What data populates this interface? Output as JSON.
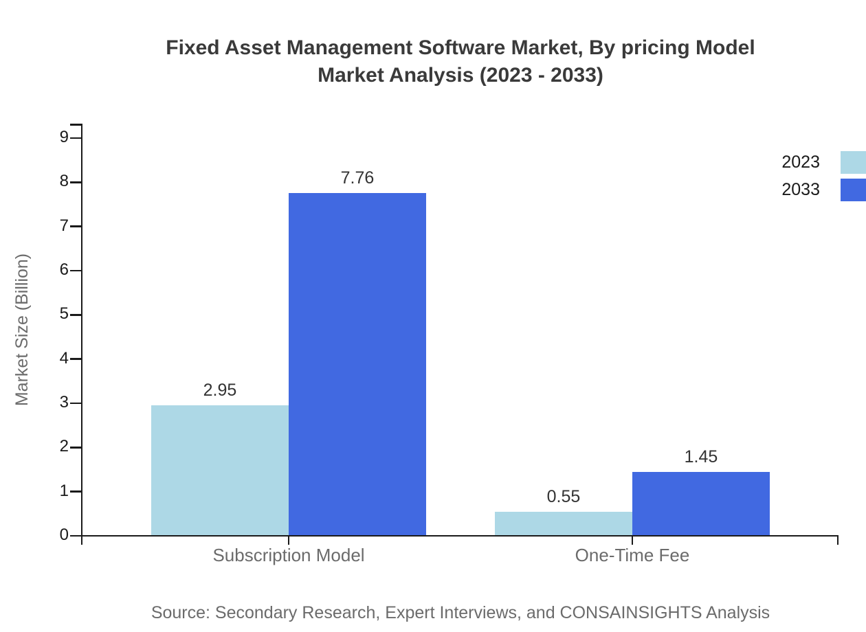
{
  "chart_data": {
    "type": "bar",
    "title_line1": "Fixed Asset Management Software Market, By pricing Model",
    "title_line2": "Market Analysis (2023 - 2033)",
    "categories": [
      "Subscription Model",
      "One-Time Fee"
    ],
    "series": [
      {
        "name": "2023",
        "color": "#ADD8E6",
        "values": [
          2.95,
          0.55
        ]
      },
      {
        "name": "2033",
        "color": "#4169E1",
        "values": [
          7.76,
          1.45
        ]
      }
    ],
    "value_labels": [
      [
        "2.95",
        "0.55"
      ],
      [
        "7.76",
        "1.45"
      ]
    ],
    "xlabel": "",
    "ylabel": "Market Size (Billion)",
    "ylim": [
      0,
      9
    ],
    "yticks": [
      0,
      1,
      2,
      3,
      4,
      5,
      6,
      7,
      8,
      9
    ],
    "grid": false,
    "legend_position": "top-right",
    "source": "Source: Secondary Research, Expert Interviews, and CONSAINSIGHTS Analysis"
  },
  "colors": {
    "background": "#ffffff",
    "title": "#3a3a3a",
    "axis": "#1a1a1a",
    "tick_label": "#1a1a1a",
    "category_label": "#6b6b6b",
    "value_label": "#333333",
    "y_axis_title": "#6b6b6b",
    "source": "#6b6b6b",
    "series_2023": "#ADD8E6",
    "series_2033": "#4169E1"
  }
}
